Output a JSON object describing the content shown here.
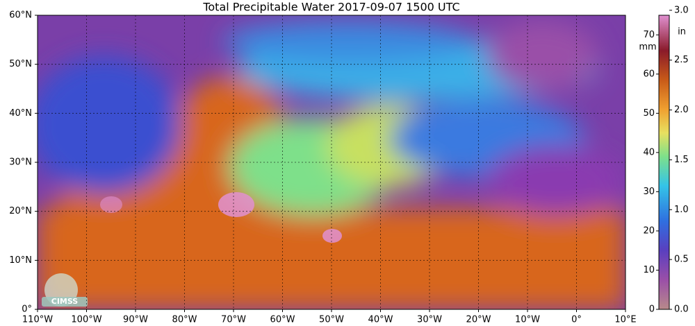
{
  "map": {
    "title": "Total Precipitable Water  2017-09-07 1500 UTC",
    "lat_range": [
      0,
      60
    ],
    "lon_range": [
      -110,
      10
    ],
    "lat_ticks": [
      {
        "value": 0,
        "label": "0°"
      },
      {
        "value": 10,
        "label": "10°N"
      },
      {
        "value": 20,
        "label": "20°N"
      },
      {
        "value": 30,
        "label": "30°N"
      },
      {
        "value": 40,
        "label": "40°N"
      },
      {
        "value": 50,
        "label": "50°N"
      },
      {
        "value": 60,
        "label": "60°N"
      }
    ],
    "lon_ticks": [
      {
        "value": -110,
        "label": "110°W"
      },
      {
        "value": -100,
        "label": "100°W"
      },
      {
        "value": -90,
        "label": "90°W"
      },
      {
        "value": -80,
        "label": "80°W"
      },
      {
        "value": -70,
        "label": "70°W"
      },
      {
        "value": -60,
        "label": "60°W"
      },
      {
        "value": -50,
        "label": "50°W"
      },
      {
        "value": -40,
        "label": "40°W"
      },
      {
        "value": -30,
        "label": "30°W"
      },
      {
        "value": -20,
        "label": "20°W"
      },
      {
        "value": -10,
        "label": "10°W"
      },
      {
        "value": 0,
        "label": "0°"
      },
      {
        "value": 10,
        "label": "10°E"
      }
    ],
    "logo": "CIMSS",
    "colorbar": {
      "mm_label": "mm",
      "in_label": "in",
      "mm_range": [
        0,
        75
      ],
      "in_range": [
        0,
        2.95
      ],
      "mm_ticks": [
        0,
        10,
        20,
        30,
        40,
        50,
        60,
        70
      ],
      "in_ticks": [
        {
          "value": 0,
          "label": "0.0"
        },
        0.5,
        {
          "value": 1,
          "label": "1.0"
        },
        1.5,
        {
          "value": 2,
          "label": "2.0"
        },
        2.5,
        {
          "value": 3,
          "label": "3.0"
        }
      ]
    }
  }
}
